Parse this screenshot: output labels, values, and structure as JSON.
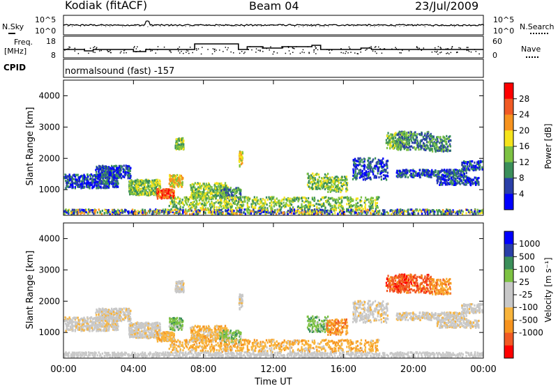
{
  "header": {
    "station": "Kodiak (fitACF)",
    "beam": "Beam 04",
    "date": "23/Jul/2009"
  },
  "noise_panel": {
    "left_label": "N.Sky",
    "right_label": "N.Search",
    "tick_top": "10^5",
    "tick_bottom": "10^0",
    "right_tick_top": "10^5",
    "right_tick_bottom": "10^0"
  },
  "freq_panel": {
    "left_label_1": "Freq.",
    "left_label_2": "[MHz]",
    "right_label": "Nave",
    "left_ticks": [
      "18",
      "8"
    ],
    "right_ticks": [
      "60",
      "0"
    ]
  },
  "cpid": {
    "label": "CPID",
    "program": "normalsound (fast) -157"
  },
  "colors": {
    "power_scale": [
      "#0000ff",
      "#2a3fa8",
      "#3b8f5a",
      "#7dc243",
      "#f5e31b",
      "#f7931e",
      "#f15a24",
      "#ff0000"
    ],
    "velocity_scale": [
      "#ff0000",
      "#f15a24",
      "#f7931e",
      "#f8b43c",
      "#c8c8c8",
      "#c8c8c8",
      "#7dc243",
      "#3b8f5a",
      "#2a3fa8",
      "#0000ff"
    ]
  },
  "chart_data": [
    {
      "type": "heatmap",
      "panel": "power",
      "ylabel": "Slant Range [km]",
      "yticks": [
        "4000",
        "3000",
        "2000",
        "1000"
      ],
      "ylim": [
        180,
        4500
      ],
      "colorbar_label": "Power [dB]",
      "colorbar_ticks": [
        "28",
        "24",
        "20",
        "16",
        "12",
        "8",
        "4"
      ],
      "zlim": [
        0,
        30
      ]
    },
    {
      "type": "heatmap",
      "panel": "velocity",
      "ylabel": "Slant Range [km]",
      "yticks": [
        "4000",
        "3000",
        "2000",
        "1000"
      ],
      "ylim": [
        180,
        4500
      ],
      "colorbar_label": "Velocity [m s⁻¹]",
      "colorbar_ticks": [
        "1000",
        "500",
        "100",
        "25",
        "-25",
        "-100",
        "-500",
        "-1000"
      ]
    }
  ],
  "x_axis": {
    "label": "Time UT",
    "ticks": [
      "00:00",
      "04:00",
      "08:00",
      "12:00",
      "16:00",
      "20:00",
      "00:00"
    ],
    "range_hours": [
      0,
      24
    ]
  }
}
